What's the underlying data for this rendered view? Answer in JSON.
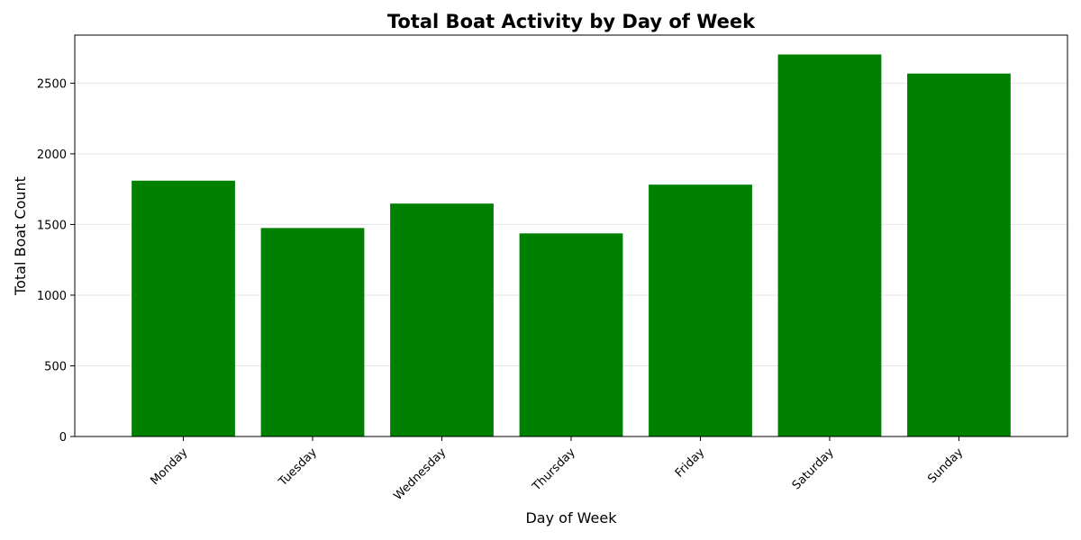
{
  "chart_data": {
    "type": "bar",
    "title": "Total Boat Activity by Day of Week",
    "xlabel": "Day of Week",
    "ylabel": "Total Boat Count",
    "categories": [
      "Monday",
      "Tuesday",
      "Wednesday",
      "Thursday",
      "Friday",
      "Saturday",
      "Sunday"
    ],
    "values": [
      1810,
      1475,
      1648,
      1437,
      1782,
      2703,
      2568
    ],
    "ylim": [
      0,
      2840
    ],
    "yticks": [
      0,
      500,
      1000,
      1500,
      2000,
      2500
    ],
    "grid": "y",
    "bar_color": "#008000",
    "grid_color": "#e6e6e6"
  }
}
